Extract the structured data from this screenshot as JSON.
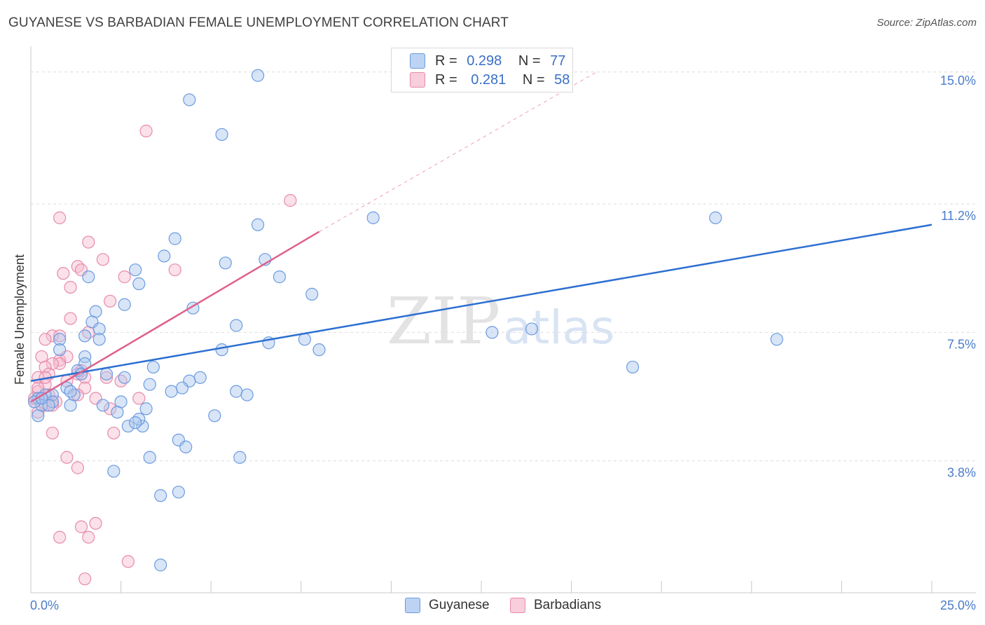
{
  "title": "GUYANESE VS BARBADIAN FEMALE UNEMPLOYMENT CORRELATION CHART",
  "source": "Source: ZipAtlas.com",
  "watermark": {
    "zip": "ZIP",
    "atlas": "atlas"
  },
  "legend": {
    "rows": [
      {
        "r_label": "R =",
        "r_value": "0.298",
        "n_label": "N =",
        "n_value": "77"
      },
      {
        "r_label": "R =",
        "r_value": "0.281",
        "n_label": "N =",
        "n_value": "58"
      }
    ]
  },
  "bottom_legend": {
    "series1": "Guyanese",
    "series2": "Barbadians"
  },
  "colors": {
    "blue_fill": "#a9c6ee",
    "blue_stroke": "#6b9be0",
    "blue_line": "#2d6fd1",
    "pink_fill": "#f5bcd0",
    "pink_stroke": "#e98aaa",
    "pink_line": "#e0608a",
    "axis_label": "#4a7cc9"
  },
  "chart_data": {
    "type": "scatter",
    "title": "GUYANESE VS BARBADIAN FEMALE UNEMPLOYMENT CORRELATION CHART",
    "xlabel": "",
    "ylabel": "Female Unemployment",
    "xlim": [
      0,
      25
    ],
    "ylim": [
      0,
      15.5
    ],
    "x_tick_labels": [
      "0.0%",
      "25.0%"
    ],
    "y_ticks": [
      3.8,
      7.5,
      11.2,
      15.0
    ],
    "y_tick_labels": [
      "3.8%",
      "7.5%",
      "11.2%",
      "15.0%"
    ],
    "grid": true,
    "series": [
      {
        "name": "Guyanese",
        "r": 0.298,
        "n": 77,
        "trend": {
          "x0": 0.0,
          "y0": 6.1,
          "x1": 25.0,
          "y1": 10.6
        },
        "points": [
          [
            6.3,
            14.9
          ],
          [
            4.4,
            14.2
          ],
          [
            5.3,
            13.2
          ],
          [
            9.5,
            10.8
          ],
          [
            6.3,
            10.6
          ],
          [
            19.0,
            10.8
          ],
          [
            4.0,
            10.2
          ],
          [
            3.7,
            9.7
          ],
          [
            6.5,
            9.6
          ],
          [
            5.4,
            9.5
          ],
          [
            1.6,
            9.1
          ],
          [
            2.9,
            9.3
          ],
          [
            3.0,
            8.9
          ],
          [
            6.9,
            9.1
          ],
          [
            7.8,
            8.6
          ],
          [
            2.6,
            8.3
          ],
          [
            4.5,
            8.2
          ],
          [
            1.8,
            8.1
          ],
          [
            1.7,
            7.8
          ],
          [
            1.9,
            7.6
          ],
          [
            5.7,
            7.7
          ],
          [
            12.8,
            7.5
          ],
          [
            13.9,
            7.6
          ],
          [
            20.7,
            7.3
          ],
          [
            1.5,
            7.4
          ],
          [
            1.9,
            7.3
          ],
          [
            0.8,
            7.3
          ],
          [
            6.6,
            7.2
          ],
          [
            7.6,
            7.3
          ],
          [
            5.3,
            7.0
          ],
          [
            0.8,
            7.0
          ],
          [
            1.5,
            6.8
          ],
          [
            8.0,
            7.0
          ],
          [
            1.5,
            6.6
          ],
          [
            3.4,
            6.5
          ],
          [
            1.3,
            6.4
          ],
          [
            1.4,
            6.3
          ],
          [
            2.1,
            6.3
          ],
          [
            2.6,
            6.2
          ],
          [
            16.7,
            6.5
          ],
          [
            4.7,
            6.2
          ],
          [
            4.4,
            6.1
          ],
          [
            3.3,
            6.0
          ],
          [
            1.0,
            5.9
          ],
          [
            4.2,
            5.9
          ],
          [
            3.9,
            5.8
          ],
          [
            5.7,
            5.8
          ],
          [
            6.0,
            5.7
          ],
          [
            0.6,
            5.7
          ],
          [
            0.4,
            5.7
          ],
          [
            0.2,
            5.6
          ],
          [
            1.2,
            5.7
          ],
          [
            0.6,
            5.5
          ],
          [
            0.3,
            5.4
          ],
          [
            0.1,
            5.5
          ],
          [
            0.5,
            5.4
          ],
          [
            1.1,
            5.4
          ],
          [
            2.0,
            5.4
          ],
          [
            2.5,
            5.5
          ],
          [
            2.4,
            5.2
          ],
          [
            3.2,
            5.3
          ],
          [
            5.1,
            5.1
          ],
          [
            0.2,
            5.1
          ],
          [
            2.7,
            4.8
          ],
          [
            3.1,
            4.8
          ],
          [
            3.0,
            5.0
          ],
          [
            2.9,
            4.9
          ],
          [
            4.1,
            4.4
          ],
          [
            4.3,
            4.2
          ],
          [
            3.3,
            3.9
          ],
          [
            5.8,
            3.9
          ],
          [
            2.3,
            3.5
          ],
          [
            3.6,
            2.8
          ],
          [
            4.1,
            2.9
          ],
          [
            3.6,
            0.8
          ],
          [
            0.3,
            5.6
          ],
          [
            1.1,
            5.8
          ]
        ]
      },
      {
        "name": "Barbadians",
        "r": 0.281,
        "n": 58,
        "trend": {
          "x0": 0.0,
          "y0": 5.5,
          "x1": 8.0,
          "y1": 10.4
        },
        "trend_ext": {
          "x0": 8.0,
          "y0": 10.4,
          "x1": 15.7,
          "y1": 15.0
        },
        "points": [
          [
            3.2,
            13.3
          ],
          [
            7.2,
            11.3
          ],
          [
            0.8,
            10.8
          ],
          [
            1.6,
            10.1
          ],
          [
            2.0,
            9.6
          ],
          [
            1.3,
            9.4
          ],
          [
            1.4,
            9.3
          ],
          [
            0.9,
            9.2
          ],
          [
            4.0,
            9.3
          ],
          [
            2.6,
            9.1
          ],
          [
            1.1,
            8.8
          ],
          [
            2.2,
            8.4
          ],
          [
            1.1,
            7.9
          ],
          [
            1.6,
            7.5
          ],
          [
            0.6,
            7.4
          ],
          [
            0.8,
            7.4
          ],
          [
            0.4,
            7.3
          ],
          [
            0.3,
            6.8
          ],
          [
            0.8,
            6.7
          ],
          [
            1.0,
            6.8
          ],
          [
            0.8,
            6.6
          ],
          [
            0.6,
            6.6
          ],
          [
            0.4,
            6.5
          ],
          [
            1.4,
            6.4
          ],
          [
            0.5,
            6.3
          ],
          [
            1.3,
            6.3
          ],
          [
            0.2,
            6.2
          ],
          [
            1.5,
            6.2
          ],
          [
            2.1,
            6.2
          ],
          [
            1.0,
            6.1
          ],
          [
            0.4,
            6.0
          ],
          [
            2.5,
            6.1
          ],
          [
            1.5,
            5.9
          ],
          [
            0.2,
            5.8
          ],
          [
            0.5,
            5.7
          ],
          [
            1.3,
            5.7
          ],
          [
            0.3,
            5.6
          ],
          [
            0.7,
            5.5
          ],
          [
            3.0,
            5.6
          ],
          [
            1.8,
            5.6
          ],
          [
            0.1,
            5.5
          ],
          [
            0.4,
            5.4
          ],
          [
            0.6,
            5.4
          ],
          [
            2.2,
            5.3
          ],
          [
            0.2,
            5.2
          ],
          [
            0.6,
            4.6
          ],
          [
            2.3,
            4.6
          ],
          [
            1.0,
            3.9
          ],
          [
            1.3,
            3.6
          ],
          [
            1.8,
            2.0
          ],
          [
            1.4,
            1.9
          ],
          [
            0.8,
            1.6
          ],
          [
            1.6,
            1.6
          ],
          [
            2.7,
            0.9
          ],
          [
            1.5,
            0.4
          ],
          [
            0.1,
            5.6
          ],
          [
            0.4,
            6.2
          ],
          [
            0.2,
            5.9
          ]
        ]
      }
    ]
  }
}
